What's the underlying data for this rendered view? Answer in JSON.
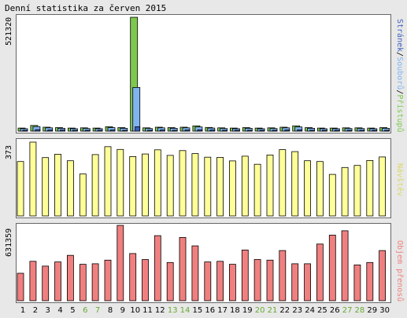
{
  "title": "Denní statistika za červen 2015",
  "chart_data": [
    {
      "type": "bar",
      "categories": [
        "1",
        "2",
        "3",
        "4",
        "5",
        "6",
        "7",
        "8",
        "9",
        "10",
        "11",
        "12",
        "13",
        "14",
        "15",
        "16",
        "17",
        "18",
        "19",
        "20",
        "21",
        "22",
        "23",
        "24",
        "25",
        "26",
        "27",
        "28",
        "29",
        "30"
      ],
      "weekend_days": [
        "6",
        "7",
        "13",
        "14",
        "20",
        "21",
        "27",
        "28"
      ],
      "ylim": [
        0,
        521320
      ],
      "y_tick_label": "521320",
      "right_label_parts": [
        "Stránek",
        "/",
        "Souborů",
        "/",
        "Přístupů"
      ],
      "series": [
        {
          "name": "Přístupů",
          "color": "#7ec850",
          "values": [
            14000,
            26000,
            18000,
            16000,
            14000,
            15000,
            14000,
            20000,
            16000,
            521320,
            15000,
            18000,
            16000,
            18000,
            24000,
            17000,
            15000,
            14000,
            16000,
            14000,
            15000,
            18000,
            24000,
            16000,
            14000,
            14000,
            15000,
            15000,
            14000,
            16000
          ]
        },
        {
          "name": "Souborů",
          "color": "#80b4f0",
          "values": [
            11000,
            21000,
            15000,
            13000,
            11000,
            12000,
            11000,
            16000,
            13000,
            200000,
            12000,
            15000,
            13000,
            15000,
            19000,
            14000,
            12000,
            11000,
            13000,
            11000,
            12000,
            15000,
            19000,
            13000,
            11000,
            11000,
            12000,
            12000,
            11000,
            13000
          ]
        },
        {
          "name": "Stránek",
          "color": "#3d5fbf",
          "values": [
            4000,
            7000,
            5000,
            5000,
            4000,
            4000,
            4000,
            5000,
            4000,
            20000,
            4000,
            5000,
            4000,
            5000,
            6000,
            5000,
            4000,
            4000,
            4000,
            4000,
            4000,
            5000,
            6000,
            4000,
            4000,
            4000,
            4000,
            4000,
            4000,
            4000
          ]
        }
      ]
    },
    {
      "type": "bar",
      "categories": [
        "1",
        "2",
        "3",
        "4",
        "5",
        "6",
        "7",
        "8",
        "9",
        "10",
        "11",
        "12",
        "13",
        "14",
        "15",
        "16",
        "17",
        "18",
        "19",
        "20",
        "21",
        "22",
        "23",
        "24",
        "25",
        "26",
        "27",
        "28",
        "29",
        "30"
      ],
      "ylim": [
        0,
        373
      ],
      "y_tick_label": "373",
      "right_label": "Návštěv",
      "series": [
        {
          "name": "Návštěv",
          "color": "#ffff99",
          "values": [
            275,
            373,
            295,
            312,
            279,
            212,
            310,
            350,
            336,
            300,
            313,
            334,
            306,
            330,
            315,
            297,
            296,
            278,
            302,
            261,
            308,
            335,
            325,
            279,
            275,
            210,
            245,
            255,
            280,
            298
          ]
        }
      ]
    },
    {
      "type": "bar",
      "categories": [
        "1",
        "2",
        "3",
        "4",
        "5",
        "6",
        "7",
        "8",
        "9",
        "10",
        "11",
        "12",
        "13",
        "14",
        "15",
        "16",
        "17",
        "18",
        "19",
        "20",
        "21",
        "22",
        "23",
        "24",
        "25",
        "26",
        "27",
        "28",
        "29",
        "30"
      ],
      "ylim": [
        0,
        631359
      ],
      "y_tick_label": "631359",
      "right_label": "Objem přenosů",
      "series": [
        {
          "name": "Objem přenosů",
          "color": "#f08080",
          "values": [
            230000,
            330000,
            290000,
            325000,
            380000,
            305000,
            310000,
            340000,
            631359,
            395000,
            345000,
            545000,
            320000,
            530000,
            460000,
            325000,
            330000,
            305000,
            425000,
            345000,
            340000,
            420000,
            310000,
            310000,
            475000,
            550000,
            586000,
            300000,
            320000,
            420000
          ]
        }
      ]
    }
  ]
}
